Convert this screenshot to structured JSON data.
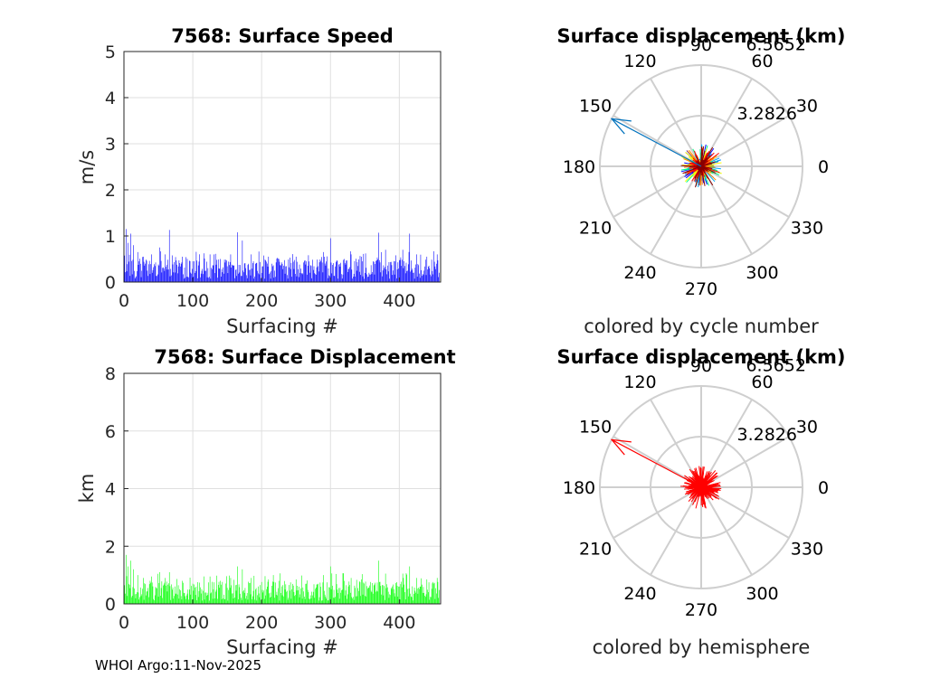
{
  "footer": "WHOI Argo:11-Nov-2025",
  "chart_data": [
    {
      "id": "speed",
      "type": "bar",
      "title": "7568: Surface Speed",
      "xlabel": "Surfacing #",
      "ylabel": "m/s",
      "xlim": [
        0,
        460
      ],
      "ylim": [
        0,
        5
      ],
      "xticks": [
        0,
        100,
        200,
        300,
        400
      ],
      "yticks": [
        0,
        1,
        2,
        3,
        4,
        5
      ],
      "grid": true,
      "color": "#0000ff",
      "n": 458,
      "baseline": 0.28,
      "spikes": [
        [
          3,
          1.15
        ],
        [
          6,
          0.85
        ],
        [
          10,
          1.05
        ],
        [
          14,
          0.8
        ],
        [
          20,
          0.65
        ],
        [
          28,
          0.55
        ],
        [
          40,
          0.6
        ],
        [
          52,
          0.75
        ],
        [
          60,
          0.6
        ],
        [
          66,
          1.13
        ],
        [
          85,
          0.55
        ],
        [
          100,
          0.45
        ],
        [
          125,
          0.6
        ],
        [
          140,
          0.5
        ],
        [
          155,
          0.6
        ],
        [
          165,
          1.08
        ],
        [
          172,
          0.9
        ],
        [
          185,
          0.6
        ],
        [
          210,
          0.55
        ],
        [
          225,
          0.5
        ],
        [
          250,
          0.55
        ],
        [
          265,
          0.45
        ],
        [
          290,
          0.65
        ],
        [
          300,
          0.95
        ],
        [
          320,
          0.5
        ],
        [
          330,
          0.6
        ],
        [
          345,
          0.55
        ],
        [
          370,
          1.07
        ],
        [
          380,
          0.7
        ],
        [
          405,
          0.7
        ],
        [
          415,
          1.05
        ],
        [
          425,
          0.6
        ],
        [
          440,
          0.55
        ],
        [
          455,
          0.6
        ]
      ]
    },
    {
      "id": "displacement",
      "type": "bar",
      "title": "7568: Surface Displacement",
      "xlabel": "Surfacing #",
      "ylabel": "km",
      "xlim": [
        0,
        460
      ],
      "ylim": [
        0,
        8
      ],
      "xticks": [
        0,
        100,
        200,
        300,
        400
      ],
      "yticks": [
        0,
        2,
        4,
        6,
        8
      ],
      "grid": true,
      "color": "#00ff00",
      "n": 458,
      "baseline": 0.45,
      "spikes": [
        [
          3,
          1.7
        ],
        [
          6,
          1.3
        ],
        [
          10,
          1.5
        ],
        [
          14,
          1.2
        ],
        [
          20,
          1.0
        ],
        [
          28,
          0.9
        ],
        [
          40,
          0.95
        ],
        [
          52,
          1.1
        ],
        [
          60,
          0.9
        ],
        [
          66,
          1.1
        ],
        [
          85,
          0.8
        ],
        [
          100,
          0.7
        ],
        [
          125,
          0.95
        ],
        [
          140,
          0.8
        ],
        [
          155,
          0.9
        ],
        [
          165,
          1.3
        ],
        [
          172,
          1.2
        ],
        [
          185,
          0.9
        ],
        [
          210,
          0.85
        ],
        [
          225,
          0.8
        ],
        [
          250,
          0.85
        ],
        [
          265,
          0.7
        ],
        [
          290,
          1.0
        ],
        [
          300,
          1.3
        ],
        [
          320,
          0.8
        ],
        [
          330,
          0.9
        ],
        [
          345,
          0.85
        ],
        [
          370,
          1.5
        ],
        [
          380,
          1.05
        ],
        [
          405,
          1.05
        ],
        [
          415,
          1.3
        ],
        [
          425,
          0.9
        ],
        [
          440,
          0.85
        ],
        [
          455,
          0.9
        ]
      ]
    },
    {
      "id": "polar-cycle",
      "type": "polar",
      "title": "Surface displacement (km)",
      "caption": "colored by cycle number",
      "rmax": 6.5652,
      "rlabels": [
        "3.2826",
        "6.5652"
      ],
      "angle_labels": [
        "0",
        "30",
        "60",
        "90",
        "120",
        "150",
        "180",
        "210",
        "240",
        "270",
        "300",
        "330"
      ],
      "grid": true,
      "colors": [
        "#0000ff",
        "#00aaff",
        "#00ff88",
        "#ffff00",
        "#ff8800",
        "#ff0000",
        "#880000"
      ],
      "max_vector": {
        "r": 6.5652,
        "angle": 152,
        "color": "#0072bd"
      }
    },
    {
      "id": "polar-hemisphere",
      "type": "polar",
      "title": "Surface displacement (km)",
      "caption": "colored by hemisphere",
      "rmax": 6.5652,
      "rlabels": [
        "3.2826",
        "6.5652"
      ],
      "angle_labels": [
        "0",
        "30",
        "60",
        "90",
        "120",
        "150",
        "180",
        "210",
        "240",
        "270",
        "300",
        "330"
      ],
      "grid": true,
      "colors": [
        "#ff0000"
      ],
      "max_vector": {
        "r": 6.5652,
        "angle": 152,
        "color": "#ff0000"
      }
    }
  ]
}
